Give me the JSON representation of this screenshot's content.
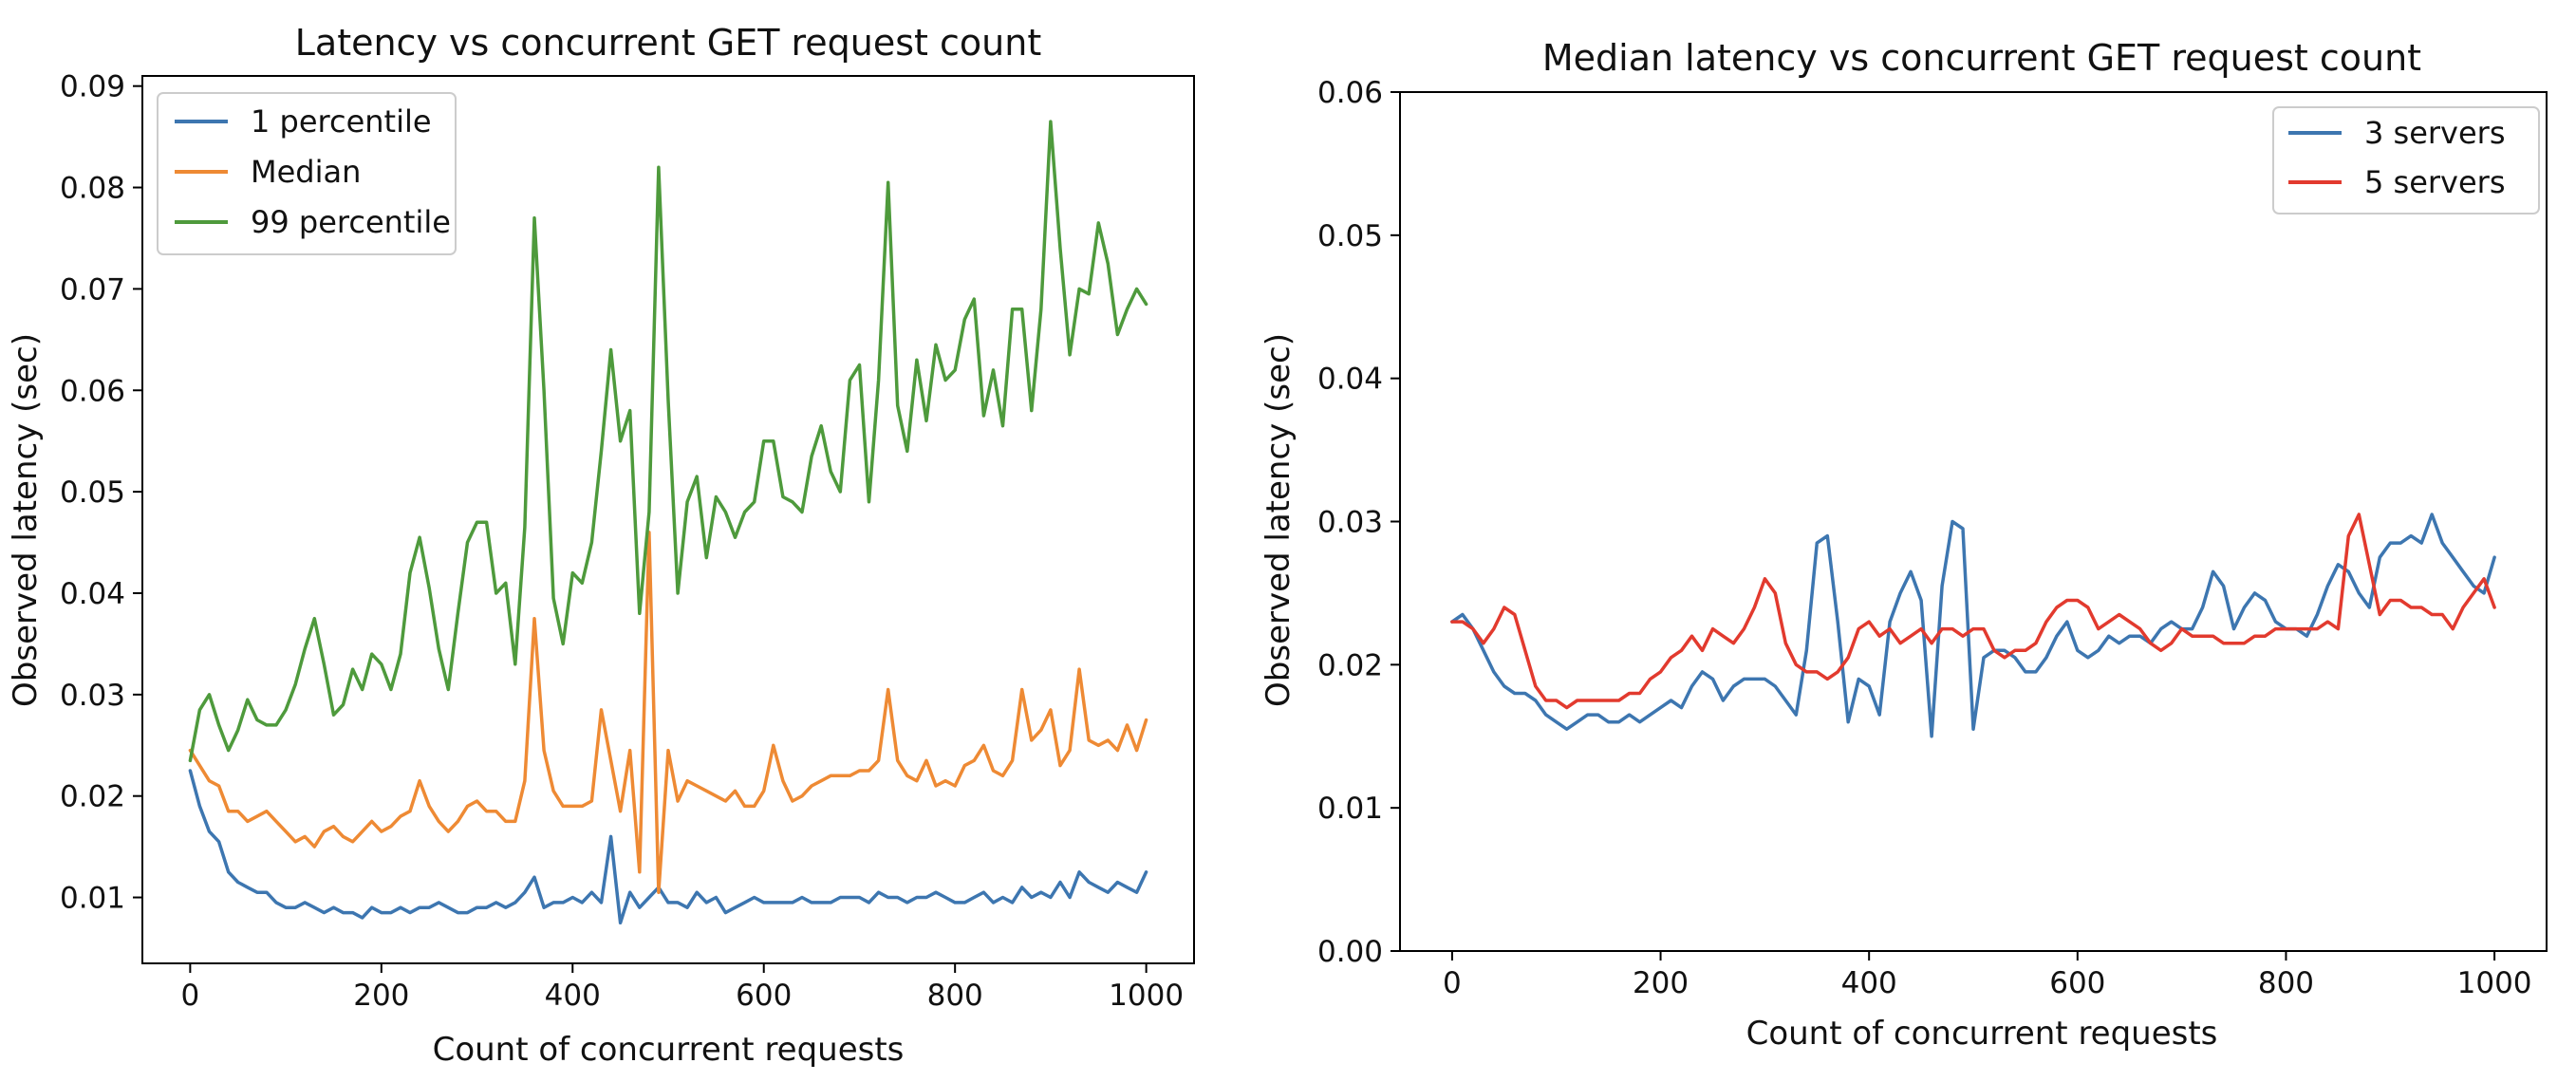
{
  "chart_data": [
    {
      "type": "line",
      "title": "Latency vs concurrent GET request count",
      "xlabel": "Count of concurrent requests",
      "ylabel": "Observed latency (sec)",
      "xlim": [
        -50,
        1050
      ],
      "ylim": [
        0.0035,
        0.091
      ],
      "xticks": [
        0,
        200,
        400,
        600,
        800,
        1000
      ],
      "yticks": [
        0.01,
        0.02,
        0.03,
        0.04,
        0.05,
        0.06,
        0.07,
        0.08,
        0.09
      ],
      "ytick_labels": [
        "0.01",
        "0.02",
        "0.03",
        "0.04",
        "0.05",
        "0.06",
        "0.07",
        "0.08",
        "0.09"
      ],
      "legend_position": "top-left",
      "grid": false,
      "x": [
        0,
        10,
        20,
        30,
        40,
        50,
        60,
        70,
        80,
        90,
        100,
        110,
        120,
        130,
        140,
        150,
        160,
        170,
        180,
        190,
        200,
        210,
        220,
        230,
        240,
        250,
        260,
        270,
        280,
        290,
        300,
        310,
        320,
        330,
        340,
        350,
        360,
        370,
        380,
        390,
        400,
        410,
        420,
        430,
        440,
        450,
        460,
        470,
        480,
        490,
        500,
        510,
        520,
        530,
        540,
        550,
        560,
        570,
        580,
        590,
        600,
        610,
        620,
        630,
        640,
        650,
        660,
        670,
        680,
        690,
        700,
        710,
        720,
        730,
        740,
        750,
        760,
        770,
        780,
        790,
        800,
        810,
        820,
        830,
        840,
        850,
        860,
        870,
        880,
        890,
        900,
        910,
        920,
        930,
        940,
        950,
        960,
        970,
        980,
        990,
        1000
      ],
      "series": [
        {
          "name": "1 percentile",
          "color": "#3d76b0",
          "values": [
            0.0225,
            0.019,
            0.0165,
            0.0155,
            0.0125,
            0.0115,
            0.011,
            0.0105,
            0.0105,
            0.0095,
            0.009,
            0.009,
            0.0095,
            0.009,
            0.0085,
            0.009,
            0.0085,
            0.0085,
            0.008,
            0.009,
            0.0085,
            0.0085,
            0.009,
            0.0085,
            0.009,
            0.009,
            0.0095,
            0.009,
            0.0085,
            0.0085,
            0.009,
            0.009,
            0.0095,
            0.009,
            0.0095,
            0.0105,
            0.012,
            0.009,
            0.0095,
            0.0095,
            0.01,
            0.0095,
            0.0105,
            0.0095,
            0.016,
            0.0075,
            0.0105,
            0.009,
            0.01,
            0.011,
            0.0095,
            0.0095,
            0.009,
            0.0105,
            0.0095,
            0.01,
            0.0085,
            0.009,
            0.0095,
            0.01,
            0.0095,
            0.0095,
            0.0095,
            0.0095,
            0.01,
            0.0095,
            0.0095,
            0.0095,
            0.01,
            0.01,
            0.01,
            0.0095,
            0.0105,
            0.01,
            0.01,
            0.0095,
            0.01,
            0.01,
            0.0105,
            0.01,
            0.0095,
            0.0095,
            0.01,
            0.0105,
            0.0095,
            0.01,
            0.0095,
            0.011,
            0.01,
            0.0105,
            0.01,
            0.0115,
            0.01,
            0.0125,
            0.0115,
            0.011,
            0.0105,
            0.0115,
            0.011,
            0.0105,
            0.0125
          ]
        },
        {
          "name": "Median",
          "color": "#ee8a34",
          "values": [
            0.0245,
            0.023,
            0.0215,
            0.021,
            0.0185,
            0.0185,
            0.0175,
            0.018,
            0.0185,
            0.0175,
            0.0165,
            0.0155,
            0.016,
            0.015,
            0.0165,
            0.017,
            0.016,
            0.0155,
            0.0165,
            0.0175,
            0.0165,
            0.017,
            0.018,
            0.0185,
            0.0215,
            0.019,
            0.0175,
            0.0165,
            0.0175,
            0.019,
            0.0195,
            0.0185,
            0.0185,
            0.0175,
            0.0175,
            0.0215,
            0.0375,
            0.0245,
            0.0205,
            0.019,
            0.019,
            0.019,
            0.0195,
            0.0285,
            0.0235,
            0.0185,
            0.0245,
            0.0125,
            0.046,
            0.0105,
            0.0245,
            0.0195,
            0.0215,
            0.021,
            0.0205,
            0.02,
            0.0195,
            0.0205,
            0.019,
            0.019,
            0.0205,
            0.025,
            0.0215,
            0.0195,
            0.02,
            0.021,
            0.0215,
            0.022,
            0.022,
            0.022,
            0.0225,
            0.0225,
            0.0235,
            0.0305,
            0.0235,
            0.022,
            0.0215,
            0.0235,
            0.021,
            0.0215,
            0.021,
            0.023,
            0.0235,
            0.025,
            0.0225,
            0.022,
            0.0235,
            0.0305,
            0.0255,
            0.0265,
            0.0285,
            0.023,
            0.0245,
            0.0325,
            0.0255,
            0.025,
            0.0255,
            0.0245,
            0.027,
            0.0245,
            0.0275
          ]
        },
        {
          "name": "99 percentile",
          "color": "#4e9a3c",
          "values": [
            0.0235,
            0.0285,
            0.03,
            0.027,
            0.0245,
            0.0265,
            0.0295,
            0.0275,
            0.027,
            0.027,
            0.0285,
            0.031,
            0.0345,
            0.0375,
            0.033,
            0.028,
            0.029,
            0.0325,
            0.0305,
            0.034,
            0.033,
            0.0305,
            0.034,
            0.042,
            0.0455,
            0.0405,
            0.0345,
            0.0305,
            0.038,
            0.045,
            0.047,
            0.047,
            0.04,
            0.041,
            0.033,
            0.0465,
            0.077,
            0.06,
            0.0395,
            0.035,
            0.042,
            0.041,
            0.045,
            0.054,
            0.064,
            0.055,
            0.058,
            0.038,
            0.048,
            0.082,
            0.059,
            0.04,
            0.049,
            0.0515,
            0.0435,
            0.0495,
            0.048,
            0.0455,
            0.048,
            0.049,
            0.055,
            0.055,
            0.0495,
            0.049,
            0.048,
            0.0535,
            0.0565,
            0.052,
            0.05,
            0.061,
            0.0625,
            0.049,
            0.061,
            0.0805,
            0.0585,
            0.054,
            0.063,
            0.057,
            0.0645,
            0.061,
            0.062,
            0.067,
            0.069,
            0.0575,
            0.062,
            0.0565,
            0.068,
            0.068,
            0.058,
            0.068,
            0.0865,
            0.074,
            0.0635,
            0.07,
            0.0695,
            0.0765,
            0.0725,
            0.0655,
            0.068,
            0.07,
            0.0685
          ]
        }
      ]
    },
    {
      "type": "line",
      "title": "Median latency vs concurrent GET request count",
      "xlabel": "Count of concurrent requests",
      "ylabel": "Observed latency (sec)",
      "xlim": [
        -50,
        1050
      ],
      "ylim": [
        0,
        0.06
      ],
      "xticks": [
        0,
        200,
        400,
        600,
        800,
        1000
      ],
      "yticks": [
        0.0,
        0.01,
        0.02,
        0.03,
        0.04,
        0.05,
        0.06
      ],
      "ytick_labels": [
        "0.00",
        "0.01",
        "0.02",
        "0.03",
        "0.04",
        "0.05",
        "0.06"
      ],
      "legend_position": "top-right",
      "grid": false,
      "x": [
        0,
        10,
        20,
        30,
        40,
        50,
        60,
        70,
        80,
        90,
        100,
        110,
        120,
        130,
        140,
        150,
        160,
        170,
        180,
        190,
        200,
        210,
        220,
        230,
        240,
        250,
        260,
        270,
        280,
        290,
        300,
        310,
        320,
        330,
        340,
        350,
        360,
        370,
        380,
        390,
        400,
        410,
        420,
        430,
        440,
        450,
        460,
        470,
        480,
        490,
        500,
        510,
        520,
        530,
        540,
        550,
        560,
        570,
        580,
        590,
        600,
        610,
        620,
        630,
        640,
        650,
        660,
        670,
        680,
        690,
        700,
        710,
        720,
        730,
        740,
        750,
        760,
        770,
        780,
        790,
        800,
        810,
        820,
        830,
        840,
        850,
        860,
        870,
        880,
        890,
        900,
        910,
        920,
        930,
        940,
        950,
        960,
        970,
        980,
        990,
        1000
      ],
      "series": [
        {
          "name": "3 servers",
          "color": "#3d76b0",
          "values": [
            0.023,
            0.0235,
            0.0225,
            0.021,
            0.0195,
            0.0185,
            0.018,
            0.018,
            0.0175,
            0.0165,
            0.016,
            0.0155,
            0.016,
            0.0165,
            0.0165,
            0.016,
            0.016,
            0.0165,
            0.016,
            0.0165,
            0.017,
            0.0175,
            0.017,
            0.0185,
            0.0195,
            0.019,
            0.0175,
            0.0185,
            0.019,
            0.019,
            0.019,
            0.0185,
            0.0175,
            0.0165,
            0.021,
            0.0285,
            0.029,
            0.023,
            0.016,
            0.019,
            0.0185,
            0.0165,
            0.023,
            0.025,
            0.0265,
            0.0245,
            0.015,
            0.0255,
            0.03,
            0.0295,
            0.0155,
            0.0205,
            0.021,
            0.021,
            0.0205,
            0.0195,
            0.0195,
            0.0205,
            0.022,
            0.023,
            0.021,
            0.0205,
            0.021,
            0.022,
            0.0215,
            0.022,
            0.022,
            0.0215,
            0.0225,
            0.023,
            0.0225,
            0.0225,
            0.024,
            0.0265,
            0.0255,
            0.0225,
            0.024,
            0.025,
            0.0245,
            0.023,
            0.0225,
            0.0225,
            0.022,
            0.0235,
            0.0255,
            0.027,
            0.0265,
            0.025,
            0.024,
            0.0275,
            0.0285,
            0.0285,
            0.029,
            0.0285,
            0.0305,
            0.0285,
            0.0275,
            0.0265,
            0.0255,
            0.025,
            0.0275
          ]
        },
        {
          "name": "5 servers",
          "color": "#e23a2e",
          "values": [
            0.023,
            0.023,
            0.0225,
            0.0215,
            0.0225,
            0.024,
            0.0235,
            0.021,
            0.0185,
            0.0175,
            0.0175,
            0.017,
            0.0175,
            0.0175,
            0.0175,
            0.0175,
            0.0175,
            0.018,
            0.018,
            0.019,
            0.0195,
            0.0205,
            0.021,
            0.022,
            0.021,
            0.0225,
            0.022,
            0.0215,
            0.0225,
            0.024,
            0.026,
            0.025,
            0.0215,
            0.02,
            0.0195,
            0.0195,
            0.019,
            0.0195,
            0.0205,
            0.0225,
            0.023,
            0.022,
            0.0225,
            0.0215,
            0.022,
            0.0225,
            0.0215,
            0.0225,
            0.0225,
            0.022,
            0.0225,
            0.0225,
            0.021,
            0.0205,
            0.021,
            0.021,
            0.0215,
            0.023,
            0.024,
            0.0245,
            0.0245,
            0.024,
            0.0225,
            0.023,
            0.0235,
            0.023,
            0.0225,
            0.0215,
            0.021,
            0.0215,
            0.0225,
            0.022,
            0.022,
            0.022,
            0.0215,
            0.0215,
            0.0215,
            0.022,
            0.022,
            0.0225,
            0.0225,
            0.0225,
            0.0225,
            0.0225,
            0.023,
            0.0225,
            0.029,
            0.0305,
            0.027,
            0.0235,
            0.0245,
            0.0245,
            0.024,
            0.024,
            0.0235,
            0.0235,
            0.0225,
            0.024,
            0.025,
            0.026,
            0.024
          ]
        }
      ]
    }
  ]
}
